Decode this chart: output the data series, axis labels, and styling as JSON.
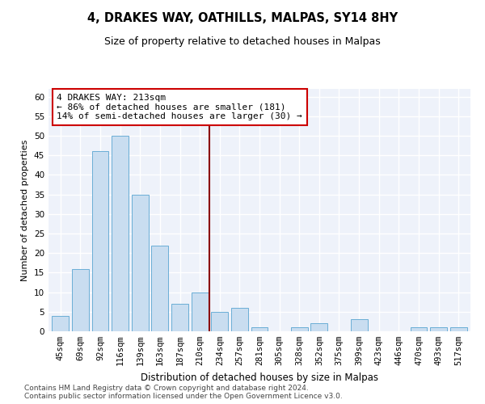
{
  "title": "4, DRAKES WAY, OATHILLS, MALPAS, SY14 8HY",
  "subtitle": "Size of property relative to detached houses in Malpas",
  "xlabel": "Distribution of detached houses by size in Malpas",
  "ylabel": "Number of detached properties",
  "categories": [
    "45sqm",
    "69sqm",
    "92sqm",
    "116sqm",
    "139sqm",
    "163sqm",
    "187sqm",
    "210sqm",
    "234sqm",
    "257sqm",
    "281sqm",
    "305sqm",
    "328sqm",
    "352sqm",
    "375sqm",
    "399sqm",
    "423sqm",
    "446sqm",
    "470sqm",
    "493sqm",
    "517sqm"
  ],
  "values": [
    4,
    16,
    46,
    50,
    35,
    22,
    7,
    10,
    5,
    6,
    1,
    0,
    1,
    2,
    0,
    3,
    0,
    0,
    1,
    1,
    1
  ],
  "bar_color": "#c9ddf0",
  "bar_edge_color": "#6aaed6",
  "vline_x_idx": 7.5,
  "vline_color": "#8B0000",
  "annotation_text": "4 DRAKES WAY: 213sqm\n← 86% of detached houses are smaller (181)\n14% of semi-detached houses are larger (30) →",
  "annotation_box_color": "#ffffff",
  "annotation_box_edge_color": "#cc0000",
  "ylim": [
    0,
    62
  ],
  "yticks": [
    0,
    5,
    10,
    15,
    20,
    25,
    30,
    35,
    40,
    45,
    50,
    55,
    60
  ],
  "background_color": "#eef2fa",
  "grid_color": "#ffffff",
  "footer": "Contains HM Land Registry data © Crown copyright and database right 2024.\nContains public sector information licensed under the Open Government Licence v3.0.",
  "title_fontsize": 10.5,
  "subtitle_fontsize": 9,
  "xlabel_fontsize": 8.5,
  "ylabel_fontsize": 8,
  "tick_fontsize": 7.5,
  "annotation_fontsize": 8,
  "footer_fontsize": 6.5
}
